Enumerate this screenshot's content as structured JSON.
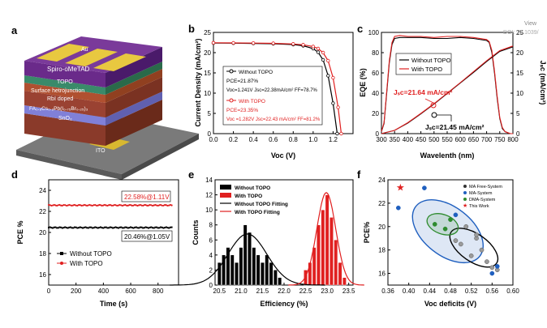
{
  "panels": {
    "a": {
      "label": "a",
      "layers": [
        "Au",
        "Spiro-oMeTAD",
        "TOPO",
        "Surface hetrojunction",
        "RbI doped",
        "FA₀.₈Cs₀.₂Pb(I₀.₇₅Br₀.₂₅)₃",
        "SnO₂",
        "ITO"
      ]
    },
    "b": {
      "label": "b",
      "annot1": [
        "PCE=21.87%",
        "Voc=1.241V Jsc=22.38mA/cm² FF=78.7%"
      ],
      "annot2": [
        "PCE=23.35%",
        "Voc =1.282V Jsc=22.43 mA/cm² FF=81.2%"
      ]
    },
    "c": {
      "label": "c",
      "jsc_red": "Jₛᴄ=21.64 mA/cm²",
      "jsc_black": "Jₛᴄ=21.45 mA/cm²",
      "watermark": "View",
      "watermark2": "DOI: 10.1039/"
    },
    "d": {
      "label": "d",
      "note_red": "22.58%@1.11V",
      "note_black": "20.46%@1.05V"
    },
    "e": {
      "label": "e"
    },
    "f": {
      "label": "f"
    }
  },
  "colors": {
    "red": "#e02020",
    "black": "#000000",
    "green": "#2e8b2e",
    "blue": "#1f5fbf"
  },
  "chart_data": [
    {
      "id": "b",
      "type": "line",
      "xlabel": "Voc (V)",
      "ylabel": "Current Density (mA/cm²)",
      "xlim": [
        0.0,
        1.4
      ],
      "ylim": [
        0,
        25
      ],
      "xticks": [
        0.0,
        0.2,
        0.4,
        0.6,
        0.8,
        1.0,
        1.2
      ],
      "yticks": [
        0,
        5,
        10,
        15,
        20,
        25
      ],
      "legend": "center-left",
      "series": [
        {
          "name": "Without TOPO",
          "color": "#000000",
          "x": [
            0,
            0.2,
            0.4,
            0.6,
            0.8,
            0.9,
            1.0,
            1.05,
            1.1,
            1.15,
            1.2,
            1.241
          ],
          "y": [
            22.38,
            22.34,
            22.29,
            22.2,
            22.0,
            21.7,
            21.0,
            20.1,
            18.2,
            14.3,
            7.5,
            0
          ]
        },
        {
          "name": "With TOPO",
          "color": "#e02020",
          "x": [
            0,
            0.2,
            0.4,
            0.6,
            0.8,
            0.9,
            1.0,
            1.05,
            1.1,
            1.15,
            1.2,
            1.25,
            1.282
          ],
          "y": [
            22.43,
            22.4,
            22.36,
            22.3,
            22.15,
            21.95,
            21.5,
            21.0,
            20.0,
            18.0,
            13.8,
            6.5,
            0
          ]
        }
      ]
    },
    {
      "id": "c",
      "type": "line",
      "xlabel": "Wavelenth (nm)",
      "ylabel": "EQE (%)",
      "y2label": "Jₛᴄ (mA/cm²)",
      "xlim": [
        300,
        800
      ],
      "ylim": [
        0,
        100
      ],
      "y2lim": [
        0,
        25
      ],
      "xticks": [
        300,
        350,
        400,
        450,
        500,
        550,
        600,
        650,
        700,
        750,
        800
      ],
      "yticks": [
        0,
        20,
        40,
        60,
        80,
        100
      ],
      "y2ticks": [
        0,
        5,
        10,
        15,
        20,
        25
      ],
      "legend": "top-left",
      "series": [
        {
          "name": "Without TOPO",
          "color": "#000000",
          "x": [
            300,
            310,
            320,
            330,
            340,
            350,
            370,
            400,
            450,
            500,
            550,
            600,
            650,
            700,
            710,
            720,
            730,
            740,
            750,
            760,
            770,
            780,
            790,
            800
          ],
          "y": [
            2,
            10,
            40,
            70,
            88,
            94,
            95,
            95,
            95,
            94,
            94,
            95,
            94,
            92,
            90,
            80,
            60,
            35,
            15,
            5,
            2,
            1,
            0,
            0
          ]
        },
        {
          "name": "With TOPO",
          "color": "#e02020",
          "x": [
            300,
            310,
            320,
            330,
            340,
            350,
            370,
            400,
            450,
            500,
            550,
            600,
            650,
            700,
            710,
            720,
            730,
            740,
            750,
            760,
            770,
            780,
            790,
            800
          ],
          "y": [
            2,
            11,
            42,
            72,
            90,
            96,
            97,
            96,
            96,
            95,
            96,
            96,
            95,
            93,
            91,
            82,
            62,
            37,
            16,
            6,
            2,
            1,
            0,
            0
          ]
        },
        {
          "name": "Jsc Without TOPO",
          "color": "#000000",
          "axis": "y2",
          "x": [
            300,
            350,
            400,
            450,
            500,
            550,
            600,
            650,
            700,
            750,
            800
          ],
          "y": [
            0,
            0.8,
            2.6,
            4.9,
            7.3,
            9.9,
            12.5,
            15.1,
            17.8,
            20.3,
            21.45
          ]
        },
        {
          "name": "Jsc With TOPO",
          "color": "#e02020",
          "axis": "y2",
          "x": [
            300,
            350,
            400,
            450,
            500,
            550,
            600,
            650,
            700,
            750,
            800
          ],
          "y": [
            0,
            0.8,
            2.7,
            5.0,
            7.4,
            10.0,
            12.6,
            15.3,
            18.0,
            20.5,
            21.64
          ]
        }
      ]
    },
    {
      "id": "d",
      "type": "scatter",
      "xlabel": "Time (s)",
      "ylabel": "PCE %",
      "xlim": [
        0,
        950
      ],
      "ylim": [
        15,
        25
      ],
      "xticks": [
        0,
        200,
        400,
        600,
        800
      ],
      "yticks": [
        16,
        18,
        20,
        22,
        24
      ],
      "legend": "bottom-left",
      "series": [
        {
          "name": "Without TOPO",
          "color": "#000000",
          "level": 20.46
        },
        {
          "name": "With TOPO",
          "color": "#e02020",
          "level": 22.58
        }
      ]
    },
    {
      "id": "e",
      "type": "bar",
      "xlabel": "Efficiency (%)",
      "ylabel": "Counts",
      "xlim": [
        20.4,
        23.6
      ],
      "ylim": [
        0,
        14
      ],
      "xticks": [
        20.5,
        21.0,
        21.5,
        22.0,
        22.5,
        23.0,
        23.5
      ],
      "yticks": [
        0,
        2,
        4,
        6,
        8,
        10,
        12,
        14
      ],
      "legend": "top-left",
      "series": [
        {
          "name": "Without TOPO",
          "color": "#000000",
          "x": [
            20.5,
            20.6,
            20.7,
            20.8,
            20.9,
            21.0,
            21.1,
            21.2,
            21.3,
            21.4,
            21.5,
            21.6,
            21.7,
            21.8,
            21.9,
            22.0
          ],
          "values": [
            3,
            4,
            5,
            4,
            3,
            5,
            8,
            7,
            5,
            4,
            3,
            4,
            3,
            2,
            1,
            0
          ]
        },
        {
          "name": "With TOPO",
          "color": "#e02020",
          "x": [
            22.5,
            22.6,
            22.7,
            22.8,
            22.9,
            23.0,
            23.1,
            23.2,
            23.3,
            23.4
          ],
          "values": [
            2,
            3,
            5,
            8,
            10,
            12,
            9,
            6,
            3,
            1
          ]
        },
        {
          "name": "Without TOPO Fitting",
          "color": "#000000",
          "mean": 21.15,
          "sd": 0.45,
          "peak": 6.8
        },
        {
          "name": "With TOPO Fitting",
          "color": "#e02020",
          "mean": 22.98,
          "sd": 0.22,
          "peak": 12.3
        }
      ]
    },
    {
      "id": "f",
      "type": "scatter",
      "xlabel": "Voc deficits (V)",
      "ylabel": "PCE%",
      "xlim": [
        0.36,
        0.6
      ],
      "ylim": [
        15,
        24
      ],
      "xticks": [
        0.36,
        0.4,
        0.44,
        0.48,
        0.52,
        0.56,
        0.6
      ],
      "yticks": [
        16,
        18,
        20,
        22,
        24
      ],
      "legend": "top-right",
      "series": [
        {
          "name": "MA Free-System",
          "color": "#333333",
          "x": [
            0.5,
            0.52,
            0.53,
            0.54,
            0.55,
            0.56,
            0.57,
            0.49,
            0.51,
            0.53
          ],
          "y": [
            18.5,
            17.5,
            19.0,
            18.0,
            17.0,
            16.5,
            16.3,
            18.8,
            20.0,
            19.3
          ]
        },
        {
          "name": "MA-System",
          "color": "#1f5fbf",
          "x": [
            0.38,
            0.43,
            0.49,
            0.56,
            0.57
          ],
          "y": [
            21.6,
            23.3,
            21.0,
            16.0,
            16.6
          ]
        },
        {
          "name": "DMA-System",
          "color": "#2e8b2e",
          "x": [
            0.45,
            0.47,
            0.48
          ],
          "y": [
            20.2,
            19.8,
            20.6
          ]
        },
        {
          "name": "This Work",
          "color": "#e02020",
          "x": [
            0.384
          ],
          "y": [
            23.35
          ]
        }
      ]
    }
  ]
}
